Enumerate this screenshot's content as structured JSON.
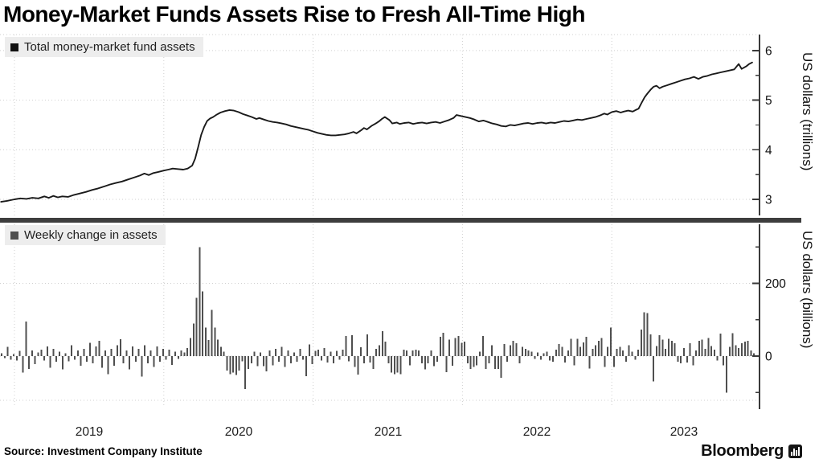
{
  "title": "Money-Market Funds Assets Rise to Fresh All-Time High",
  "source": "Source: Investment Company Institute",
  "branding": {
    "logo_text": "Bloomberg",
    "logo_icon": "equalizer-bars-icon"
  },
  "x_axis": {
    "labels": [
      "2019",
      "2020",
      "2021",
      "2022",
      "2023"
    ]
  },
  "chart_data": [
    {
      "type": "line",
      "name": "Total money-market fund assets",
      "ylabel": "US dollars (trillions)",
      "color": "#1a1a1a",
      "ylim": [
        2.85,
        6.35
      ],
      "yticks": [
        3,
        4,
        5,
        6
      ],
      "yticks_minor": [
        3.5,
        4.5,
        5.5
      ],
      "x_unit": "decimal_year",
      "points": [
        [
          2018.91,
          2.95
        ],
        [
          2018.95,
          2.97
        ],
        [
          2019.0,
          3.0
        ],
        [
          2019.04,
          3.02
        ],
        [
          2019.08,
          3.01
        ],
        [
          2019.12,
          3.03
        ],
        [
          2019.16,
          3.02
        ],
        [
          2019.2,
          3.06
        ],
        [
          2019.23,
          3.03
        ],
        [
          2019.26,
          3.07
        ],
        [
          2019.29,
          3.04
        ],
        [
          2019.32,
          3.06
        ],
        [
          2019.36,
          3.05
        ],
        [
          2019.4,
          3.09
        ],
        [
          2019.44,
          3.12
        ],
        [
          2019.48,
          3.15
        ],
        [
          2019.52,
          3.19
        ],
        [
          2019.56,
          3.22
        ],
        [
          2019.6,
          3.26
        ],
        [
          2019.64,
          3.3
        ],
        [
          2019.68,
          3.33
        ],
        [
          2019.72,
          3.36
        ],
        [
          2019.76,
          3.4
        ],
        [
          2019.8,
          3.44
        ],
        [
          2019.84,
          3.48
        ],
        [
          2019.87,
          3.52
        ],
        [
          2019.9,
          3.49
        ],
        [
          2019.93,
          3.53
        ],
        [
          2019.96,
          3.55
        ],
        [
          2020.0,
          3.58
        ],
        [
          2020.03,
          3.6
        ],
        [
          2020.06,
          3.62
        ],
        [
          2020.1,
          3.61
        ],
        [
          2020.13,
          3.6
        ],
        [
          2020.16,
          3.62
        ],
        [
          2020.19,
          3.68
        ],
        [
          2020.21,
          3.82
        ],
        [
          2020.23,
          4.05
        ],
        [
          2020.25,
          4.3
        ],
        [
          2020.27,
          4.46
        ],
        [
          2020.29,
          4.58
        ],
        [
          2020.31,
          4.63
        ],
        [
          2020.33,
          4.66
        ],
        [
          2020.35,
          4.7
        ],
        [
          2020.38,
          4.75
        ],
        [
          2020.41,
          4.78
        ],
        [
          2020.44,
          4.8
        ],
        [
          2020.47,
          4.79
        ],
        [
          2020.5,
          4.76
        ],
        [
          2020.53,
          4.72
        ],
        [
          2020.56,
          4.69
        ],
        [
          2020.59,
          4.66
        ],
        [
          2020.62,
          4.62
        ],
        [
          2020.64,
          4.64
        ],
        [
          2020.67,
          4.61
        ],
        [
          2020.7,
          4.58
        ],
        [
          2020.73,
          4.56
        ],
        [
          2020.76,
          4.55
        ],
        [
          2020.79,
          4.53
        ],
        [
          2020.82,
          4.51
        ],
        [
          2020.85,
          4.48
        ],
        [
          2020.88,
          4.46
        ],
        [
          2020.91,
          4.44
        ],
        [
          2020.94,
          4.42
        ],
        [
          2020.97,
          4.4
        ],
        [
          2021.0,
          4.37
        ],
        [
          2021.03,
          4.34
        ],
        [
          2021.06,
          4.32
        ],
        [
          2021.09,
          4.3
        ],
        [
          2021.12,
          4.29
        ],
        [
          2021.15,
          4.29
        ],
        [
          2021.18,
          4.3
        ],
        [
          2021.21,
          4.31
        ],
        [
          2021.24,
          4.33
        ],
        [
          2021.27,
          4.36
        ],
        [
          2021.29,
          4.33
        ],
        [
          2021.32,
          4.39
        ],
        [
          2021.34,
          4.44
        ],
        [
          2021.36,
          4.41
        ],
        [
          2021.39,
          4.48
        ],
        [
          2021.42,
          4.53
        ],
        [
          2021.44,
          4.57
        ],
        [
          2021.46,
          4.62
        ],
        [
          2021.48,
          4.66
        ],
        [
          2021.51,
          4.6
        ],
        [
          2021.53,
          4.53
        ],
        [
          2021.56,
          4.55
        ],
        [
          2021.58,
          4.52
        ],
        [
          2021.61,
          4.54
        ],
        [
          2021.64,
          4.55
        ],
        [
          2021.67,
          4.52
        ],
        [
          2021.7,
          4.54
        ],
        [
          2021.73,
          4.55
        ],
        [
          2021.76,
          4.53
        ],
        [
          2021.79,
          4.55
        ],
        [
          2021.82,
          4.56
        ],
        [
          2021.85,
          4.54
        ],
        [
          2021.88,
          4.57
        ],
        [
          2021.91,
          4.6
        ],
        [
          2021.94,
          4.64
        ],
        [
          2021.96,
          4.7
        ],
        [
          2021.99,
          4.68
        ],
        [
          2022.02,
          4.66
        ],
        [
          2022.05,
          4.64
        ],
        [
          2022.08,
          4.61
        ],
        [
          2022.11,
          4.57
        ],
        [
          2022.14,
          4.59
        ],
        [
          2022.17,
          4.56
        ],
        [
          2022.2,
          4.53
        ],
        [
          2022.23,
          4.51
        ],
        [
          2022.26,
          4.48
        ],
        [
          2022.29,
          4.47
        ],
        [
          2022.32,
          4.5
        ],
        [
          2022.35,
          4.49
        ],
        [
          2022.38,
          4.51
        ],
        [
          2022.41,
          4.53
        ],
        [
          2022.44,
          4.54
        ],
        [
          2022.47,
          4.52
        ],
        [
          2022.5,
          4.54
        ],
        [
          2022.53,
          4.55
        ],
        [
          2022.56,
          4.53
        ],
        [
          2022.59,
          4.55
        ],
        [
          2022.62,
          4.54
        ],
        [
          2022.65,
          4.56
        ],
        [
          2022.68,
          4.58
        ],
        [
          2022.71,
          4.57
        ],
        [
          2022.74,
          4.59
        ],
        [
          2022.77,
          4.61
        ],
        [
          2022.8,
          4.6
        ],
        [
          2022.83,
          4.62
        ],
        [
          2022.86,
          4.64
        ],
        [
          2022.89,
          4.66
        ],
        [
          2022.92,
          4.69
        ],
        [
          2022.95,
          4.73
        ],
        [
          2022.97,
          4.71
        ],
        [
          2023.0,
          4.76
        ],
        [
          2023.03,
          4.78
        ],
        [
          2023.06,
          4.75
        ],
        [
          2023.08,
          4.77
        ],
        [
          2023.11,
          4.79
        ],
        [
          2023.14,
          4.77
        ],
        [
          2023.16,
          4.8
        ],
        [
          2023.18,
          4.83
        ],
        [
          2023.2,
          4.95
        ],
        [
          2023.22,
          5.06
        ],
        [
          2023.24,
          5.14
        ],
        [
          2023.26,
          5.21
        ],
        [
          2023.28,
          5.27
        ],
        [
          2023.3,
          5.29
        ],
        [
          2023.32,
          5.24
        ],
        [
          2023.34,
          5.27
        ],
        [
          2023.37,
          5.3
        ],
        [
          2023.4,
          5.33
        ],
        [
          2023.43,
          5.36
        ],
        [
          2023.46,
          5.39
        ],
        [
          2023.49,
          5.42
        ],
        [
          2023.52,
          5.44
        ],
        [
          2023.55,
          5.47
        ],
        [
          2023.58,
          5.43
        ],
        [
          2023.61,
          5.47
        ],
        [
          2023.64,
          5.49
        ],
        [
          2023.67,
          5.52
        ],
        [
          2023.7,
          5.54
        ],
        [
          2023.73,
          5.56
        ],
        [
          2023.76,
          5.58
        ],
        [
          2023.79,
          5.6
        ],
        [
          2023.82,
          5.62
        ],
        [
          2023.85,
          5.73
        ],
        [
          2023.87,
          5.63
        ],
        [
          2023.9,
          5.68
        ],
        [
          2023.92,
          5.73
        ],
        [
          2023.94,
          5.76
        ]
      ]
    },
    {
      "type": "bar",
      "name": "Weekly change in assets",
      "ylabel": "US dollars (billions)",
      "color": "#4f4f4f",
      "ylim": [
        -155,
        360
      ],
      "yticks": [
        0,
        200
      ],
      "yticks_minor": [
        -100,
        100,
        300
      ],
      "x_unit": "weekly, starting decimal year 2018.91",
      "x_start": 2018.91,
      "values": [
        8,
        -5,
        25,
        -10,
        6,
        -12,
        14,
        -45,
        95,
        -35,
        16,
        -22,
        10,
        18,
        -12,
        26,
        -32,
        20,
        -15,
        12,
        -36,
        8,
        -14,
        30,
        -10,
        16,
        -26,
        20,
        -16,
        36,
        -20,
        26,
        42,
        -32,
        16,
        -50,
        20,
        -26,
        30,
        46,
        -20,
        16,
        -36,
        26,
        -16,
        20,
        -56,
        30,
        -20,
        16,
        -30,
        26,
        -16,
        20,
        -10,
        18,
        -24,
        12,
        -8,
        16,
        10,
        22,
        50,
        90,
        160,
        300,
        178,
        78,
        44,
        127,
        78,
        45,
        25,
        12,
        -40,
        -50,
        -45,
        -52,
        -40,
        -14,
        -91,
        -35,
        -20,
        12,
        -28,
        10,
        -28,
        -42,
        15,
        -25,
        20,
        -15,
        25,
        -30,
        15,
        -20,
        10,
        -15,
        20,
        -10,
        -55,
        32,
        -22,
        14,
        18,
        -12,
        22,
        -18,
        12,
        -20,
        14,
        -10,
        18,
        55,
        -14,
        58,
        -30,
        -51,
        24,
        -20,
        60,
        -18,
        -35,
        20,
        30,
        69,
        40,
        -20,
        -45,
        -50,
        -45,
        -50,
        18,
        15,
        -25,
        15,
        18,
        15,
        -20,
        -36,
        -20,
        15,
        -28,
        -15,
        53,
        64,
        -44,
        45,
        -26,
        50,
        55,
        36,
        40,
        -20,
        -35,
        -30,
        -25,
        12,
        55,
        -35,
        -20,
        30,
        -35,
        -35,
        -60,
        33,
        -15,
        30,
        42,
        35,
        -20,
        25,
        20,
        15,
        12,
        -8,
        10,
        -10,
        8,
        12,
        -12,
        -15,
        18,
        33,
        25,
        -18,
        15,
        47,
        -25,
        47,
        25,
        38,
        53,
        -34,
        20,
        30,
        42,
        50,
        -30,
        25,
        78,
        -30,
        20,
        25,
        15,
        -15,
        30,
        12,
        -10,
        18,
        73,
        120,
        118,
        60,
        -70,
        28,
        58,
        45,
        20,
        48,
        42,
        35,
        -15,
        -20,
        22,
        -18,
        35,
        -25,
        15,
        42,
        45,
        20,
        50,
        28,
        18,
        -12,
        62,
        -25,
        -100,
        25,
        63,
        30,
        22,
        35,
        40,
        42,
        15,
        8
      ]
    }
  ]
}
